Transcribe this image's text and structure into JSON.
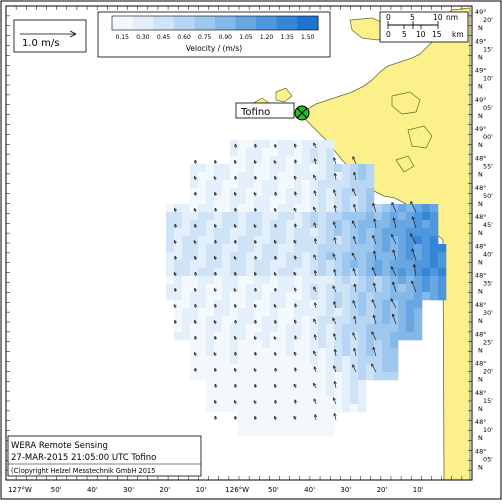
{
  "legend": {
    "ticks": [
      "0.15",
      "0.30",
      "0.45",
      "0.60",
      "0.75",
      "0.90",
      "1.05",
      "1.20",
      "1.35",
      "1.50"
    ],
    "label": "Velocity / (m/s)",
    "colors": [
      "#f3f8fd",
      "#e3effb",
      "#cfe3f7",
      "#b8d6f3",
      "#9ec7ee",
      "#84b8e9",
      "#69a7e3",
      "#4f97dd",
      "#3786d6",
      "#1f74cf"
    ]
  },
  "scale_reference": {
    "label": "1.0 m/s"
  },
  "scale_bar": {
    "ticks_nm": [
      "0",
      "5",
      "10"
    ],
    "unit_nm": "nm",
    "ticks_km": [
      "0",
      "5",
      "10",
      "15"
    ],
    "unit_km": "km"
  },
  "station": {
    "name": "Tofino",
    "marker_color": "#1fc21f"
  },
  "latitude_labels": [
    {
      "deg": "49°",
      "min": "20'",
      "hem": "N"
    },
    {
      "deg": "49°",
      "min": "15'",
      "hem": "N"
    },
    {
      "deg": "49°",
      "min": "10'",
      "hem": "N"
    },
    {
      "deg": "49°",
      "min": "05'",
      "hem": "N"
    },
    {
      "deg": "49°",
      "min": "00'",
      "hem": "N"
    },
    {
      "deg": "48°",
      "min": "55'",
      "hem": "N"
    },
    {
      "deg": "48°",
      "min": "50'",
      "hem": "N"
    },
    {
      "deg": "48°",
      "min": "45'",
      "hem": "N"
    },
    {
      "deg": "48°",
      "min": "40'",
      "hem": "N"
    },
    {
      "deg": "48°",
      "min": "35'",
      "hem": "N"
    },
    {
      "deg": "48°",
      "min": "30'",
      "hem": "N"
    },
    {
      "deg": "48°",
      "min": "25'",
      "hem": "N"
    },
    {
      "deg": "48°",
      "min": "20'",
      "hem": "N"
    },
    {
      "deg": "48°",
      "min": "15'",
      "hem": "N"
    },
    {
      "deg": "48°",
      "min": "10'",
      "hem": "N"
    },
    {
      "deg": "48°",
      "min": "05'",
      "hem": "N"
    }
  ],
  "longitude_labels": [
    "127°W",
    "50'",
    "40'",
    "30'",
    "20'",
    "10'",
    "126°W",
    "50'",
    "40'",
    "30'",
    "20'",
    "10'"
  ],
  "info_box": {
    "line1": "WERA Remote Sensing",
    "line2": "27-MAR-2015 21:05:00 UTC  Tofino",
    "line3": "(C)opyright Helzel Messtechnik GmbH 2015"
  },
  "colors": {
    "land": "#fbf08a",
    "coast": "#6b6a2a",
    "frame": "#000000"
  }
}
